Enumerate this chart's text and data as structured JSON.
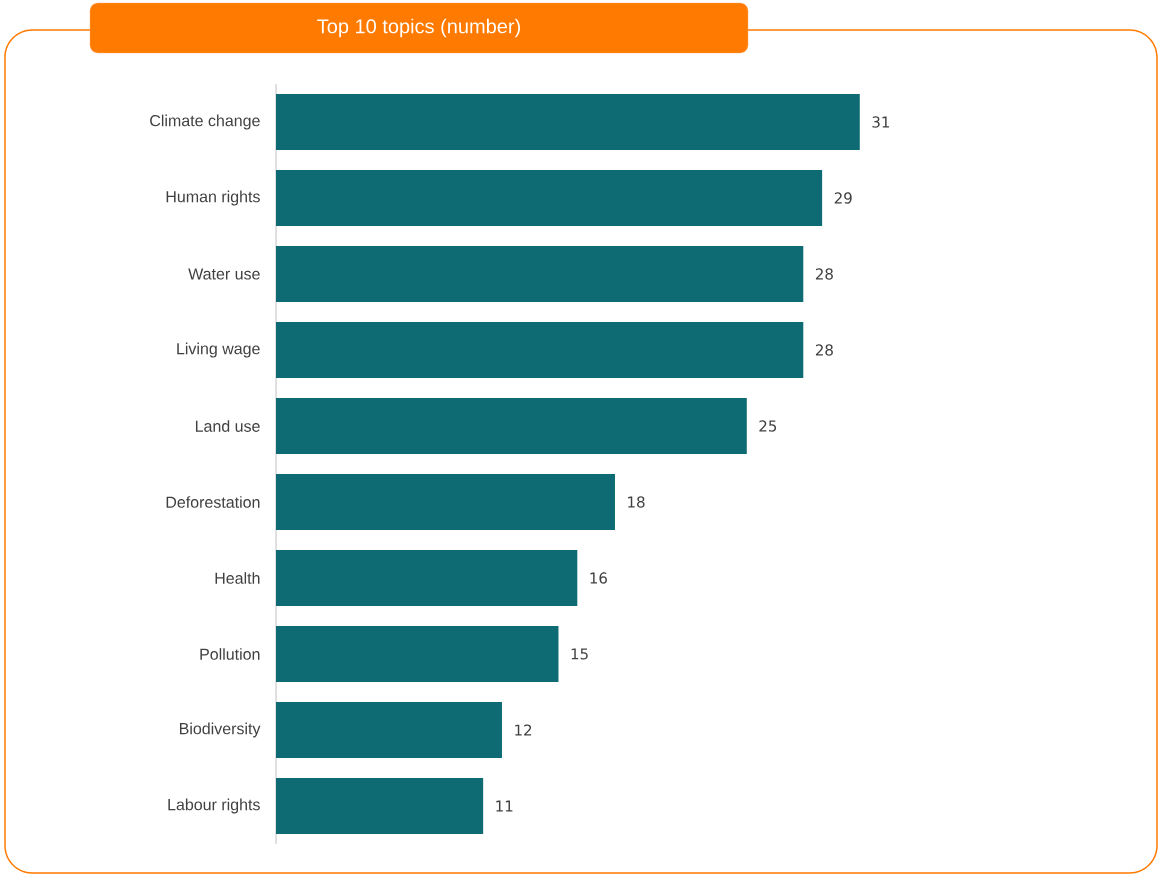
{
  "chart_data": {
    "type": "bar",
    "orientation": "horizontal",
    "title": "Top 10 topics (number)",
    "categories": [
      "Climate change",
      "Human rights",
      "Water use",
      "Living wage",
      "Land use",
      "Deforestation",
      "Health",
      "Pollution",
      "Biodiversity",
      "Labour rights"
    ],
    "values": [
      31,
      29,
      28,
      28,
      25,
      18,
      16,
      15,
      12,
      11
    ],
    "color": "#0e6b73",
    "data_labels": true
  }
}
